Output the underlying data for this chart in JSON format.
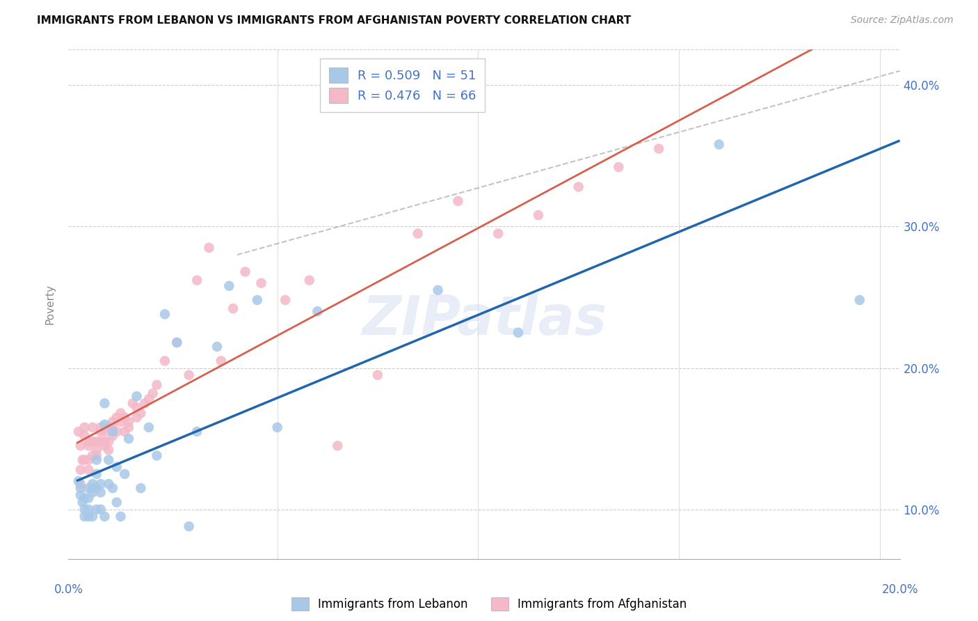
{
  "title": "IMMIGRANTS FROM LEBANON VS IMMIGRANTS FROM AFGHANISTAN POVERTY CORRELATION CHART",
  "source": "Source: ZipAtlas.com",
  "ylabel": "Poverty",
  "legend_label_blue": "Immigrants from Lebanon",
  "legend_label_pink": "Immigrants from Afghanistan",
  "r_blue": 0.509,
  "n_blue": 51,
  "r_pink": 0.476,
  "n_pink": 66,
  "xlim": [
    -0.002,
    0.205
  ],
  "ylim": [
    0.065,
    0.425
  ],
  "xticks": [
    0.0,
    0.05,
    0.1,
    0.15,
    0.2
  ],
  "yticks": [
    0.1,
    0.2,
    0.3,
    0.4
  ],
  "blue_scatter_color": "#a8c8e8",
  "pink_scatter_color": "#f4b8c8",
  "regression_blue_color": "#2166ac",
  "regression_pink_color": "#d6604d",
  "regression_blue_lw": 2.5,
  "regression_pink_lw": 2.0,
  "tick_color": "#4472c4",
  "watermark": "ZIPatlas",
  "blue_scatter_x": [
    0.0005,
    0.001,
    0.001,
    0.0015,
    0.002,
    0.002,
    0.002,
    0.003,
    0.003,
    0.003,
    0.003,
    0.004,
    0.004,
    0.004,
    0.004,
    0.005,
    0.005,
    0.005,
    0.005,
    0.006,
    0.006,
    0.006,
    0.007,
    0.007,
    0.007,
    0.008,
    0.008,
    0.009,
    0.009,
    0.01,
    0.01,
    0.011,
    0.012,
    0.013,
    0.015,
    0.016,
    0.018,
    0.02,
    0.022,
    0.025,
    0.028,
    0.03,
    0.035,
    0.038,
    0.045,
    0.05,
    0.06,
    0.09,
    0.11,
    0.16,
    0.195
  ],
  "blue_scatter_y": [
    0.12,
    0.115,
    0.11,
    0.105,
    0.108,
    0.1,
    0.095,
    0.115,
    0.108,
    0.1,
    0.095,
    0.115,
    0.118,
    0.112,
    0.095,
    0.115,
    0.135,
    0.125,
    0.1,
    0.118,
    0.112,
    0.1,
    0.175,
    0.16,
    0.095,
    0.135,
    0.118,
    0.155,
    0.115,
    0.13,
    0.105,
    0.095,
    0.125,
    0.15,
    0.18,
    0.115,
    0.158,
    0.138,
    0.238,
    0.218,
    0.088,
    0.155,
    0.215,
    0.258,
    0.248,
    0.158,
    0.24,
    0.255,
    0.225,
    0.358,
    0.248
  ],
  "pink_scatter_x": [
    0.0005,
    0.001,
    0.001,
    0.001,
    0.0015,
    0.002,
    0.002,
    0.002,
    0.003,
    0.003,
    0.003,
    0.003,
    0.004,
    0.004,
    0.004,
    0.005,
    0.005,
    0.005,
    0.006,
    0.006,
    0.006,
    0.007,
    0.007,
    0.007,
    0.008,
    0.008,
    0.008,
    0.009,
    0.009,
    0.009,
    0.01,
    0.01,
    0.011,
    0.011,
    0.012,
    0.012,
    0.013,
    0.013,
    0.014,
    0.015,
    0.015,
    0.016,
    0.017,
    0.018,
    0.019,
    0.02,
    0.022,
    0.025,
    0.028,
    0.03,
    0.033,
    0.036,
    0.039,
    0.042,
    0.046,
    0.052,
    0.058,
    0.065,
    0.075,
    0.085,
    0.095,
    0.105,
    0.115,
    0.125,
    0.135,
    0.145
  ],
  "pink_scatter_y": [
    0.155,
    0.118,
    0.128,
    0.145,
    0.135,
    0.158,
    0.152,
    0.135,
    0.148,
    0.145,
    0.135,
    0.128,
    0.138,
    0.148,
    0.158,
    0.142,
    0.148,
    0.138,
    0.155,
    0.148,
    0.158,
    0.148,
    0.155,
    0.145,
    0.158,
    0.148,
    0.142,
    0.162,
    0.152,
    0.158,
    0.165,
    0.155,
    0.162,
    0.168,
    0.155,
    0.165,
    0.162,
    0.158,
    0.175,
    0.165,
    0.172,
    0.168,
    0.175,
    0.178,
    0.182,
    0.188,
    0.205,
    0.218,
    0.195,
    0.262,
    0.285,
    0.205,
    0.242,
    0.268,
    0.26,
    0.248,
    0.262,
    0.145,
    0.195,
    0.295,
    0.318,
    0.295,
    0.308,
    0.328,
    0.342,
    0.355
  ]
}
